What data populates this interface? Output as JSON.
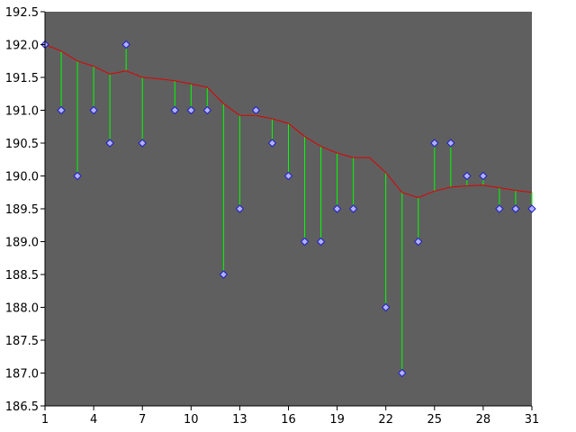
{
  "chart_data": {
    "type": "scatter",
    "title": "",
    "xlabel": "",
    "ylabel": "",
    "xlim": [
      1,
      31
    ],
    "ylim": [
      186.5,
      192.5
    ],
    "x_ticks": [
      1,
      4,
      7,
      10,
      13,
      16,
      19,
      22,
      25,
      28,
      31
    ],
    "y_ticks": [
      "186.5",
      "187.0",
      "187.5",
      "188.0",
      "188.5",
      "189.0",
      "189.5",
      "190.0",
      "190.5",
      "191.0",
      "191.5",
      "192.0",
      "192.5"
    ],
    "grid": false,
    "legend": "none",
    "x": [
      1,
      2,
      3,
      4,
      5,
      6,
      7,
      8,
      9,
      10,
      11,
      12,
      13,
      14,
      15,
      16,
      17,
      18,
      19,
      20,
      21,
      22,
      23,
      24,
      25,
      26,
      27,
      28,
      29,
      30,
      31
    ],
    "series": [
      {
        "type": "scatter",
        "values": [
          192.0,
          191.0,
          190.0,
          191.0,
          190.5,
          192.0,
          190.5,
          null,
          191.0,
          191.0,
          191.0,
          188.5,
          189.5,
          191.0,
          190.5,
          190.0,
          189.0,
          189.0,
          189.5,
          189.5,
          null,
          188.0,
          187.0,
          189.0,
          190.5,
          190.5,
          190.0,
          190.0,
          189.5,
          189.5,
          189.5
        ]
      },
      {
        "type": "line",
        "values": [
          192.0,
          191.9,
          191.75,
          191.67,
          191.55,
          191.6,
          191.5,
          191.48,
          191.45,
          191.4,
          191.35,
          191.1,
          190.92,
          190.92,
          190.87,
          190.8,
          190.6,
          190.45,
          190.35,
          190.28,
          190.28,
          190.05,
          189.75,
          189.67,
          189.77,
          189.83,
          189.85,
          189.86,
          189.82,
          189.78,
          189.75
        ]
      }
    ],
    "colors": {
      "plot_background": "#5f5f5f",
      "outer_background": "#ffffff",
      "line": "#e00000",
      "stems": "#00ff00",
      "marker_fill": "#b0b0ff",
      "marker_stroke": "#2020c0",
      "axis": "#000000"
    }
  }
}
